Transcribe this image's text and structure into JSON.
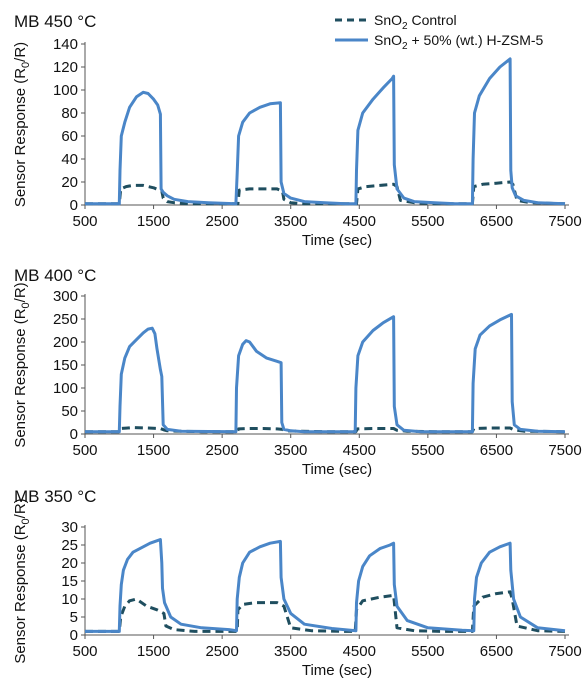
{
  "legend": {
    "control": {
      "text": "SnO",
      "sub": "2",
      "rest": " Control"
    },
    "zsm": {
      "text": "SnO",
      "sub": "2",
      "rest": " + 50% (wt.) H-ZSM-5"
    }
  },
  "colors": {
    "control": "#1f4e5f",
    "zsm": "#4a86c8"
  },
  "chart_data": [
    {
      "type": "line",
      "title": "MB 450 °C",
      "xlabel": "Time (sec)",
      "ylabel": "Sensor Response (R0/R)",
      "xlim": [
        500,
        7500
      ],
      "ylim": [
        0,
        140
      ],
      "xticks": [
        500,
        1500,
        2500,
        3500,
        4500,
        5500,
        6500,
        7500
      ],
      "yticks": [
        0,
        20,
        40,
        60,
        80,
        100,
        120,
        140
      ],
      "series": [
        {
          "name": "SnO2 Control",
          "style": "dashed",
          "x": [
            500,
            1000,
            1020,
            1100,
            1200,
            1350,
            1500,
            1620,
            1640,
            1700,
            1800,
            2000,
            2200,
            2730,
            2750,
            2900,
            3100,
            3300,
            3380,
            3400,
            3500,
            3700,
            4000,
            4460,
            4480,
            4600,
            4800,
            5000,
            5050,
            5100,
            5300,
            5600,
            6150,
            6170,
            6300,
            6500,
            6700,
            6740,
            6800,
            7000,
            7500
          ],
          "y": [
            1,
            1,
            14,
            16,
            17,
            17,
            15,
            12,
            6,
            3,
            2,
            1,
            1,
            1,
            13,
            14,
            14,
            14,
            12,
            5,
            2,
            1,
            1,
            1,
            14,
            16,
            17,
            18,
            16,
            4,
            2,
            1,
            1,
            16,
            18,
            19,
            20,
            18,
            4,
            2,
            1
          ]
        },
        {
          "name": "SnO2 + 50% (wt.) H-ZSM-5",
          "style": "solid",
          "x": [
            500,
            1000,
            1010,
            1030,
            1080,
            1150,
            1250,
            1350,
            1420,
            1500,
            1560,
            1600,
            1610,
            1640,
            1700,
            1800,
            2000,
            2300,
            2700,
            2720,
            2740,
            2800,
            2900,
            3050,
            3200,
            3350,
            3360,
            3400,
            3500,
            3700,
            4000,
            4300,
            4450,
            4460,
            4480,
            4550,
            4700,
            4850,
            4980,
            5000,
            5010,
            5050,
            5150,
            5300,
            5600,
            5900,
            6150,
            6160,
            6180,
            6250,
            6400,
            6550,
            6700,
            6710,
            6730,
            6780,
            6900,
            7100,
            7500
          ],
          "y": [
            1,
            1,
            30,
            60,
            72,
            85,
            94,
            98,
            97,
            92,
            87,
            79,
            14,
            11,
            8,
            5,
            3,
            2,
            1,
            28,
            60,
            72,
            80,
            85,
            88,
            89,
            20,
            10,
            6,
            3,
            2,
            1,
            1,
            30,
            65,
            80,
            92,
            102,
            110,
            112,
            35,
            14,
            6,
            3,
            2,
            1,
            1,
            40,
            80,
            95,
            110,
            120,
            127,
            30,
            15,
            8,
            4,
            2,
            1
          ]
        }
      ]
    },
    {
      "type": "line",
      "title": "MB 400 °C",
      "xlabel": "Time (sec)",
      "ylabel": "Sensor Response (R0/R)",
      "xlim": [
        500,
        7500
      ],
      "ylim": [
        0,
        300
      ],
      "xticks": [
        500,
        1500,
        2500,
        3500,
        4500,
        5500,
        6500,
        7500
      ],
      "yticks": [
        0,
        50,
        100,
        150,
        200,
        250,
        300
      ],
      "series": [
        {
          "name": "SnO2 Control",
          "style": "dashed",
          "x": [
            500,
            1000,
            1020,
            1200,
            1400,
            1600,
            1650,
            1700,
            1900,
            2200,
            2720,
            2740,
            2900,
            3100,
            3300,
            3380,
            3400,
            3600,
            4000,
            4450,
            4470,
            4700,
            4900,
            5000,
            5050,
            5200,
            5600,
            6150,
            6170,
            6400,
            6700,
            6760,
            6900,
            7500
          ],
          "y": [
            5,
            5,
            12,
            14,
            13,
            12,
            9,
            7,
            6,
            5,
            5,
            11,
            12,
            12,
            11,
            10,
            7,
            6,
            5,
            5,
            11,
            12,
            12,
            12,
            8,
            6,
            5,
            5,
            12,
            13,
            13,
            9,
            6,
            5
          ]
        },
        {
          "name": "SnO2 + 50% (wt.) H-ZSM-5",
          "style": "solid",
          "x": [
            500,
            1000,
            1010,
            1030,
            1080,
            1150,
            1250,
            1350,
            1420,
            1480,
            1520,
            1550,
            1600,
            1620,
            1640,
            1700,
            1900,
            2700,
            2710,
            2740,
            2800,
            2850,
            2900,
            3000,
            3150,
            3300,
            3360,
            3370,
            3400,
            3500,
            3700,
            4440,
            4450,
            4480,
            4550,
            4700,
            4850,
            5000,
            5010,
            5050,
            5150,
            5400,
            6150,
            6160,
            6190,
            6260,
            6400,
            6550,
            6720,
            6730,
            6760,
            6850,
            7100,
            7500
          ],
          "y": [
            5,
            5,
            60,
            130,
            165,
            190,
            205,
            220,
            228,
            230,
            218,
            185,
            140,
            125,
            20,
            10,
            6,
            5,
            100,
            170,
            195,
            203,
            200,
            180,
            165,
            158,
            155,
            25,
            10,
            7,
            5,
            5,
            100,
            170,
            200,
            225,
            242,
            255,
            60,
            20,
            8,
            5,
            5,
            110,
            185,
            215,
            235,
            248,
            260,
            70,
            20,
            10,
            6,
            5
          ]
        }
      ]
    },
    {
      "type": "line",
      "title": "MB 350 °C",
      "xlabel": "Time (sec)",
      "ylabel": "Sensor Response (R0/R)",
      "xlim": [
        500,
        7500
      ],
      "ylim": [
        0,
        30
      ],
      "xticks": [
        500,
        1500,
        2500,
        3500,
        4500,
        5500,
        6500,
        7500
      ],
      "yticks": [
        0,
        5,
        10,
        15,
        20,
        25,
        30
      ],
      "series": [
        {
          "name": "SnO2 Control",
          "style": "dashed",
          "x": [
            500,
            1000,
            1020,
            1080,
            1150,
            1250,
            1400,
            1550,
            1650,
            1680,
            1800,
            2100,
            2500,
            2720,
            2730,
            2800,
            3000,
            3300,
            3400,
            3500,
            3800,
            4300,
            4440,
            4460,
            4550,
            4800,
            5000,
            5050,
            5300,
            5700,
            6150,
            6170,
            6300,
            6500,
            6700,
            6730,
            6800,
            7100,
            7500
          ],
          "y": [
            1,
            1,
            5,
            8,
            9.5,
            10,
            8,
            7,
            6,
            2.5,
            1.5,
            1,
            1,
            1,
            7,
            8.5,
            9,
            9,
            8,
            2,
            1.2,
            1,
            1,
            7,
            9.5,
            10.5,
            11,
            2,
            1.2,
            1,
            1,
            8,
            10.5,
            11.5,
            12,
            10,
            2.5,
            1.2,
            1
          ]
        },
        {
          "name": "SnO2 + 50% (wt.) H-ZSM-5",
          "style": "solid",
          "x": [
            500,
            1000,
            1010,
            1030,
            1060,
            1120,
            1200,
            1300,
            1450,
            1600,
            1620,
            1630,
            1660,
            1750,
            1900,
            2200,
            2600,
            2710,
            2720,
            2750,
            2800,
            2900,
            3050,
            3200,
            3350,
            3360,
            3400,
            3500,
            3700,
            4100,
            4450,
            4460,
            4490,
            4550,
            4650,
            4800,
            4950,
            5000,
            5010,
            5050,
            5200,
            5500,
            6000,
            6170,
            6180,
            6210,
            6280,
            6400,
            6550,
            6700,
            6710,
            6750,
            6850,
            7100,
            7500
          ],
          "y": [
            1,
            1,
            8,
            14,
            18,
            21,
            23,
            24,
            25.5,
            26.5,
            20,
            13,
            9,
            5,
            3,
            2,
            1.5,
            1.2,
            10,
            16,
            20,
            23,
            24.5,
            25.5,
            26,
            16,
            10,
            6,
            3,
            1.8,
            1.2,
            9,
            15,
            19,
            22,
            24,
            25,
            25.5,
            14,
            8,
            4,
            2,
            1.3,
            1.2,
            10,
            16,
            20,
            23,
            24.5,
            25.5,
            18,
            10,
            5,
            2,
            1.2
          ]
        }
      ]
    }
  ]
}
